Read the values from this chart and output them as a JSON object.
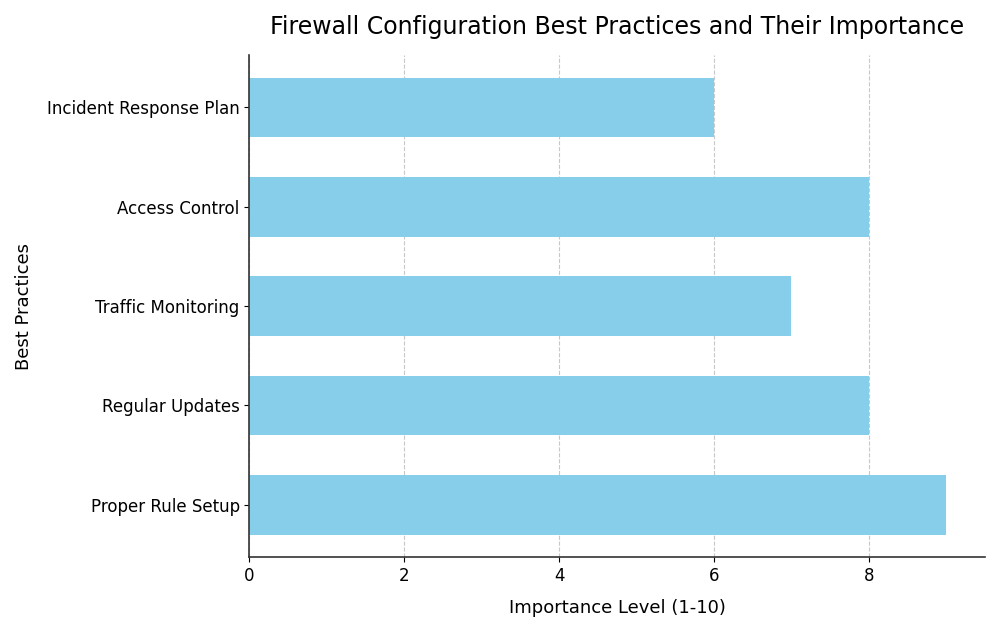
{
  "title": "Firewall Configuration Best Practices and Their Importance",
  "xlabel": "Importance Level (1-10)",
  "ylabel": "Best Practices",
  "categories": [
    "Proper Rule Setup",
    "Regular Updates",
    "Traffic Monitoring",
    "Access Control",
    "Incident Response Plan"
  ],
  "values": [
    9,
    8,
    7,
    8,
    6
  ],
  "bar_color": "#87CEEB",
  "background_color": "#ffffff",
  "xlim": [
    0,
    9.5
  ],
  "xticks": [
    0,
    2,
    4,
    6,
    8
  ],
  "title_fontsize": 17,
  "axis_label_fontsize": 13,
  "tick_fontsize": 12,
  "bar_height": 0.6,
  "grid_color": "#c8c8c8",
  "grid_linestyle": "--",
  "spine_color": "#333333"
}
